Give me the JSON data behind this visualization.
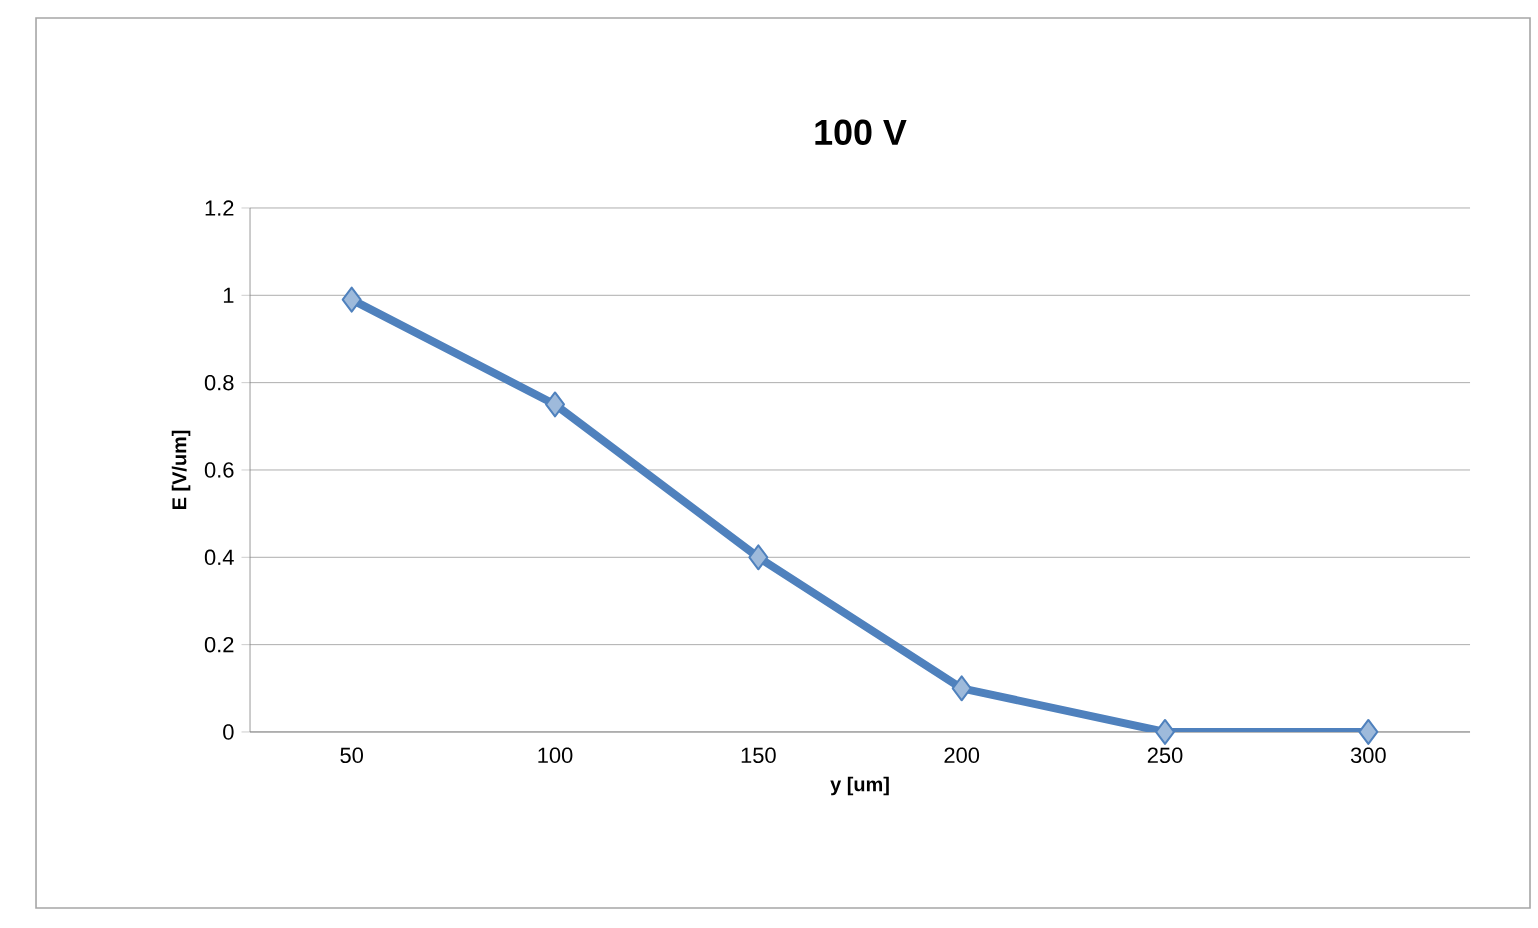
{
  "chart_data": {
    "type": "line",
    "title": "100 V",
    "xlabel": "y [um]",
    "ylabel": "E [V/um]",
    "categories": [
      "50",
      "100",
      "150",
      "200",
      "250",
      "300"
    ],
    "series": [
      {
        "color": "#4f81bd",
        "values": [
          0.99,
          0.75,
          0.4,
          0.1,
          0,
          0
        ]
      }
    ],
    "ylim": [
      0,
      1.2
    ],
    "yticks": [
      0,
      0.2,
      0.4,
      0.6,
      0.8,
      1,
      1.2
    ],
    "grid": "y",
    "marker": "diamond",
    "line_style": "solid"
  }
}
